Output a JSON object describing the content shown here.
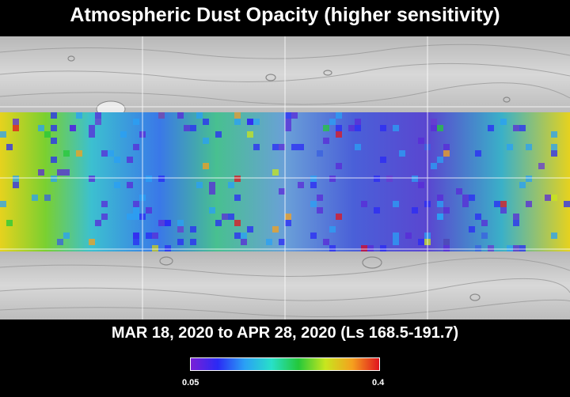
{
  "title": "Atmospheric Dust Opacity (higher sensitivity)",
  "date_range": "MAR 18, 2020 to APR 28, 2020 (Ls 168.5-191.7)",
  "colorbar": {
    "min_label": "0.05",
    "max_label": "0.4",
    "colors": [
      "#7a1fd6",
      "#2a2af5",
      "#2aa0f5",
      "#28e0c8",
      "#24c83a",
      "#c8e61e",
      "#f5a01e",
      "#e0141e"
    ]
  },
  "map": {
    "background_color": "#cfcfcf",
    "grid_color": "#ffffff"
  }
}
